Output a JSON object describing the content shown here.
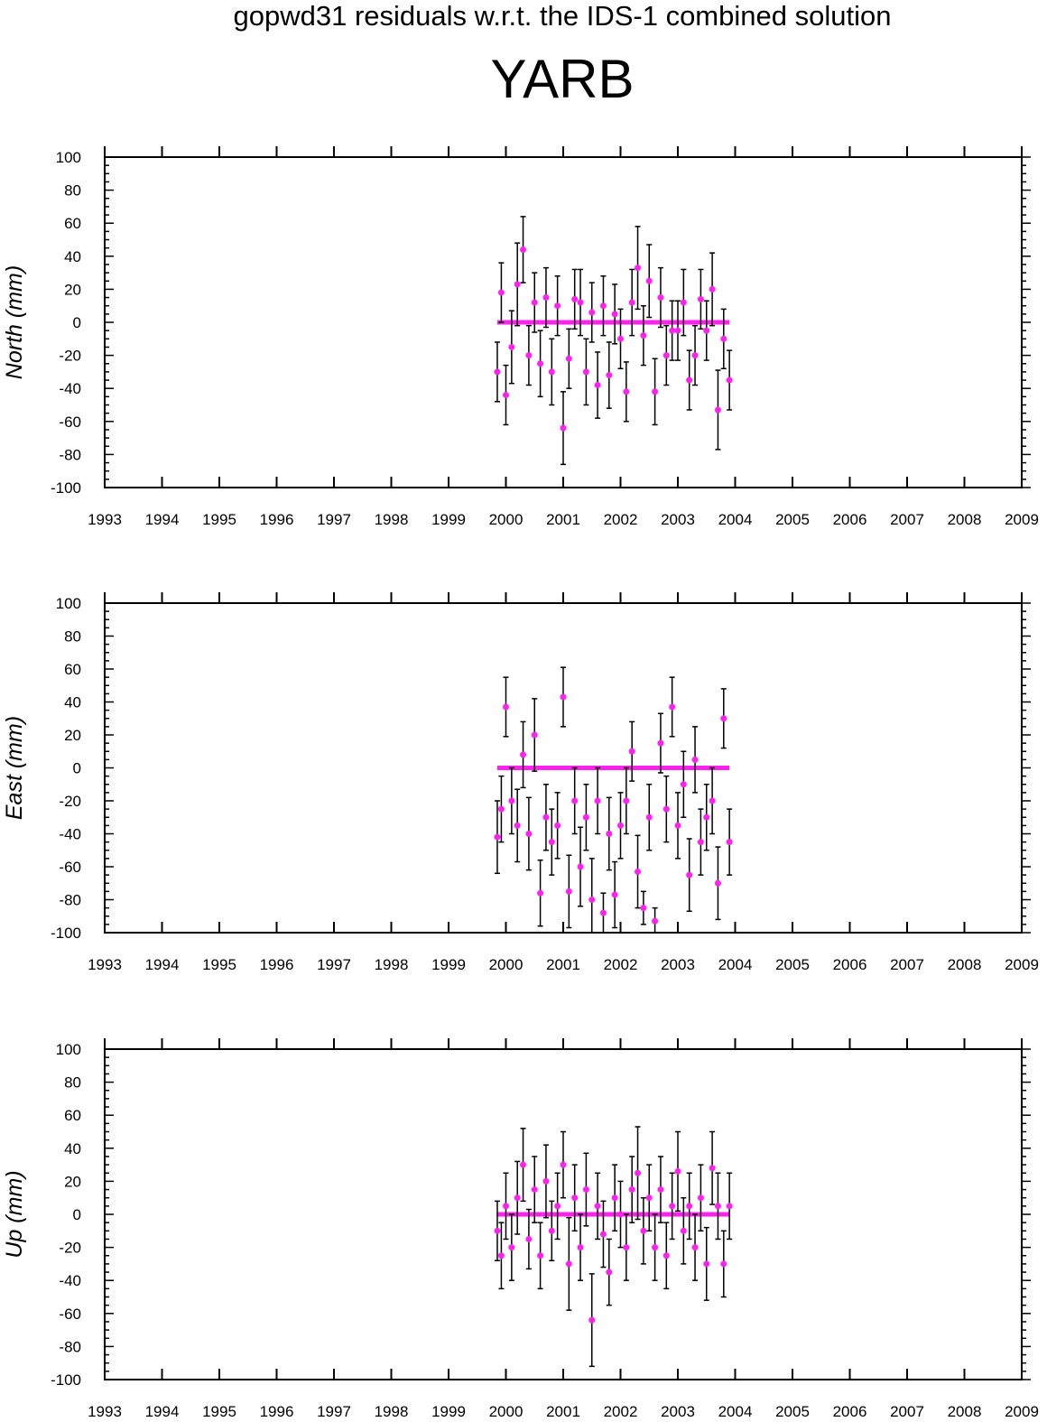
{
  "header": {
    "title": "gopwd31 residuals w.r.t. the IDS-1 combined solution",
    "station": "YARB"
  },
  "colors": {
    "points": "#ff22ee",
    "errorbars": "#000000",
    "axes": "#000000"
  },
  "chart_data": [
    {
      "type": "scatter",
      "ylabel": "North (mm)",
      "xlim": [
        1993,
        2009
      ],
      "ylim": [
        -100,
        100
      ],
      "x_ticks": [
        "1993",
        "1994",
        "1995",
        "1996",
        "1997",
        "1998",
        "1999",
        "2000",
        "2001",
        "2002",
        "2003",
        "2004",
        "2005",
        "2006",
        "2007",
        "2008",
        "2009"
      ],
      "y_ticks": [
        "100",
        "80",
        "60",
        "40",
        "20",
        "0",
        "-20",
        "-40",
        "-60",
        "-80",
        "-100"
      ],
      "series": [
        {
          "x": [
            1999.85,
            1999.92,
            2000.0,
            2000.1,
            2000.2,
            2000.3,
            2000.4,
            2000.5,
            2000.6,
            2000.7,
            2000.8,
            2000.9,
            2001.0,
            2001.1,
            2001.2,
            2001.3,
            2001.4,
            2001.5,
            2001.6,
            2001.7,
            2001.8,
            2001.9,
            2002.0,
            2002.1,
            2002.2,
            2002.3,
            2002.4,
            2002.5,
            2002.6,
            2002.7,
            2002.8,
            2002.9,
            2003.0,
            2003.1,
            2003.2,
            2003.3,
            2003.4,
            2003.5,
            2003.6,
            2003.7,
            2003.8,
            2003.9
          ],
          "y": [
            -30,
            18,
            -44,
            -15,
            23,
            44,
            -20,
            12,
            -25,
            15,
            -30,
            10,
            -64,
            -22,
            14,
            12,
            -30,
            6,
            -38,
            10,
            -32,
            5,
            -10,
            -42,
            12,
            33,
            -8,
            25,
            -42,
            15,
            -20,
            -5,
            -5,
            12,
            -35,
            -20,
            14,
            -5,
            20,
            -53,
            -10,
            -35
          ],
          "err": [
            18,
            18,
            18,
            22,
            25,
            20,
            18,
            18,
            20,
            18,
            20,
            18,
            22,
            18,
            18,
            20,
            20,
            18,
            20,
            18,
            20,
            18,
            18,
            18,
            20,
            25,
            18,
            22,
            20,
            18,
            18,
            18,
            18,
            20,
            18,
            18,
            18,
            18,
            22,
            24,
            18,
            18
          ]
        }
      ]
    },
    {
      "type": "scatter",
      "ylabel": "East (mm)",
      "xlim": [
        1993,
        2009
      ],
      "ylim": [
        -100,
        100
      ],
      "x_ticks": [
        "1993",
        "1994",
        "1995",
        "1996",
        "1997",
        "1998",
        "1999",
        "2000",
        "2001",
        "2002",
        "2003",
        "2004",
        "2005",
        "2006",
        "2007",
        "2008",
        "2009"
      ],
      "y_ticks": [
        "100",
        "80",
        "60",
        "40",
        "20",
        "0",
        "-20",
        "-40",
        "-60",
        "-80",
        "-100"
      ],
      "series": [
        {
          "x": [
            1999.85,
            1999.92,
            2000.0,
            2000.1,
            2000.2,
            2000.3,
            2000.4,
            2000.5,
            2000.6,
            2000.7,
            2000.8,
            2000.9,
            2001.0,
            2001.1,
            2001.2,
            2001.3,
            2001.4,
            2001.5,
            2001.6,
            2001.7,
            2001.8,
            2001.9,
            2002.0,
            2002.1,
            2002.2,
            2002.3,
            2002.4,
            2002.5,
            2002.6,
            2002.7,
            2002.8,
            2002.9,
            2003.0,
            2003.1,
            2003.2,
            2003.3,
            2003.4,
            2003.5,
            2003.6,
            2003.7,
            2003.8,
            2003.9
          ],
          "y": [
            -42,
            -25,
            37,
            -20,
            -35,
            8,
            -40,
            20,
            -76,
            -30,
            -45,
            -35,
            43,
            -75,
            -20,
            -60,
            -30,
            -80,
            -20,
            -88,
            -40,
            -77,
            -35,
            -20,
            10,
            -63,
            -85,
            -30,
            -93,
            15,
            -25,
            37,
            -35,
            -10,
            -65,
            5,
            -45,
            -30,
            -20,
            -70,
            30,
            -45
          ],
          "err": [
            22,
            20,
            18,
            20,
            22,
            20,
            22,
            22,
            20,
            20,
            20,
            20,
            18,
            22,
            20,
            24,
            20,
            25,
            20,
            12,
            22,
            20,
            20,
            20,
            18,
            22,
            10,
            20,
            8,
            18,
            20,
            18,
            20,
            20,
            22,
            20,
            20,
            20,
            20,
            22,
            18,
            20
          ]
        }
      ]
    },
    {
      "type": "scatter",
      "ylabel": "Up (mm)",
      "xlim": [
        1993,
        2009
      ],
      "ylim": [
        -100,
        100
      ],
      "x_ticks": [
        "1993",
        "1994",
        "1995",
        "1996",
        "1997",
        "1998",
        "1999",
        "2000",
        "2001",
        "2002",
        "2003",
        "2004",
        "2005",
        "2006",
        "2007",
        "2008",
        "2009"
      ],
      "y_ticks": [
        "100",
        "80",
        "60",
        "40",
        "20",
        "0",
        "-20",
        "-40",
        "-60",
        "-80",
        "-100"
      ],
      "series": [
        {
          "x": [
            1999.85,
            1999.92,
            2000.0,
            2000.1,
            2000.2,
            2000.3,
            2000.4,
            2000.5,
            2000.6,
            2000.7,
            2000.8,
            2000.9,
            2001.0,
            2001.1,
            2001.2,
            2001.3,
            2001.4,
            2001.5,
            2001.6,
            2001.7,
            2001.8,
            2001.9,
            2002.0,
            2002.1,
            2002.2,
            2002.3,
            2002.4,
            2002.5,
            2002.6,
            2002.7,
            2002.8,
            2002.9,
            2003.0,
            2003.1,
            2003.2,
            2003.3,
            2003.4,
            2003.5,
            2003.6,
            2003.7,
            2003.8,
            2003.9
          ],
          "y": [
            -10,
            -25,
            5,
            -20,
            10,
            30,
            -15,
            15,
            -25,
            20,
            -10,
            5,
            30,
            -30,
            10,
            -20,
            15,
            -64,
            5,
            -12,
            -35,
            10,
            0,
            -20,
            15,
            25,
            -10,
            10,
            -20,
            15,
            -25,
            5,
            26,
            -10,
            5,
            -20,
            10,
            -30,
            28,
            5,
            -30,
            5
          ],
          "err": [
            18,
            20,
            20,
            20,
            22,
            22,
            18,
            20,
            20,
            22,
            18,
            20,
            20,
            28,
            20,
            20,
            22,
            28,
            20,
            20,
            20,
            20,
            20,
            20,
            20,
            28,
            20,
            20,
            20,
            20,
            20,
            20,
            24,
            20,
            20,
            20,
            20,
            22,
            22,
            20,
            20,
            20
          ]
        }
      ]
    }
  ]
}
